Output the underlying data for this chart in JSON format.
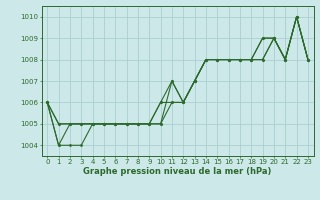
{
  "x": [
    0,
    1,
    2,
    3,
    4,
    5,
    6,
    7,
    8,
    9,
    10,
    11,
    12,
    13,
    14,
    15,
    16,
    17,
    18,
    19,
    20,
    21,
    22,
    23
  ],
  "series": [
    [
      1006,
      1005,
      1005,
      1005,
      1005,
      1005,
      1005,
      1005,
      1005,
      1005,
      1006,
      1007,
      1006,
      1007,
      1008,
      1008,
      1008,
      1008,
      1008,
      1009,
      1009,
      1008,
      1010,
      1008
    ],
    [
      1006,
      1005,
      1005,
      1005,
      1005,
      1005,
      1005,
      1005,
      1005,
      1005,
      1005,
      1007,
      1006,
      1007,
      1008,
      1008,
      1008,
      1008,
      1008,
      1008,
      1009,
      1008,
      1010,
      1008
    ],
    [
      1006,
      1004,
      1005,
      1005,
      1005,
      1005,
      1005,
      1005,
      1005,
      1005,
      1006,
      1006,
      1006,
      1007,
      1008,
      1008,
      1008,
      1008,
      1008,
      1009,
      1009,
      1008,
      1010,
      1008
    ],
    [
      1006,
      1004,
      1004,
      1004,
      1005,
      1005,
      1005,
      1005,
      1005,
      1005,
      1005,
      1006,
      1006,
      1007,
      1008,
      1008,
      1008,
      1008,
      1008,
      1008,
      1009,
      1008,
      1010,
      1008
    ]
  ],
  "line_color": "#2d6a2d",
  "bg_color": "#cce8e8",
  "grid_color": "#aacfcf",
  "xlabel": "Graphe pression niveau de la mer (hPa)",
  "ylim": [
    1003.5,
    1010.5
  ],
  "xlim": [
    -0.5,
    23.5
  ],
  "yticks": [
    1004,
    1005,
    1006,
    1007,
    1008,
    1009,
    1010
  ],
  "xticks": [
    0,
    1,
    2,
    3,
    4,
    5,
    6,
    7,
    8,
    9,
    10,
    11,
    12,
    13,
    14,
    15,
    16,
    17,
    18,
    19,
    20,
    21,
    22,
    23
  ],
  "tick_fontsize": 5.0,
  "xlabel_fontsize": 6.0,
  "marker_size": 1.5,
  "line_width": 0.8
}
